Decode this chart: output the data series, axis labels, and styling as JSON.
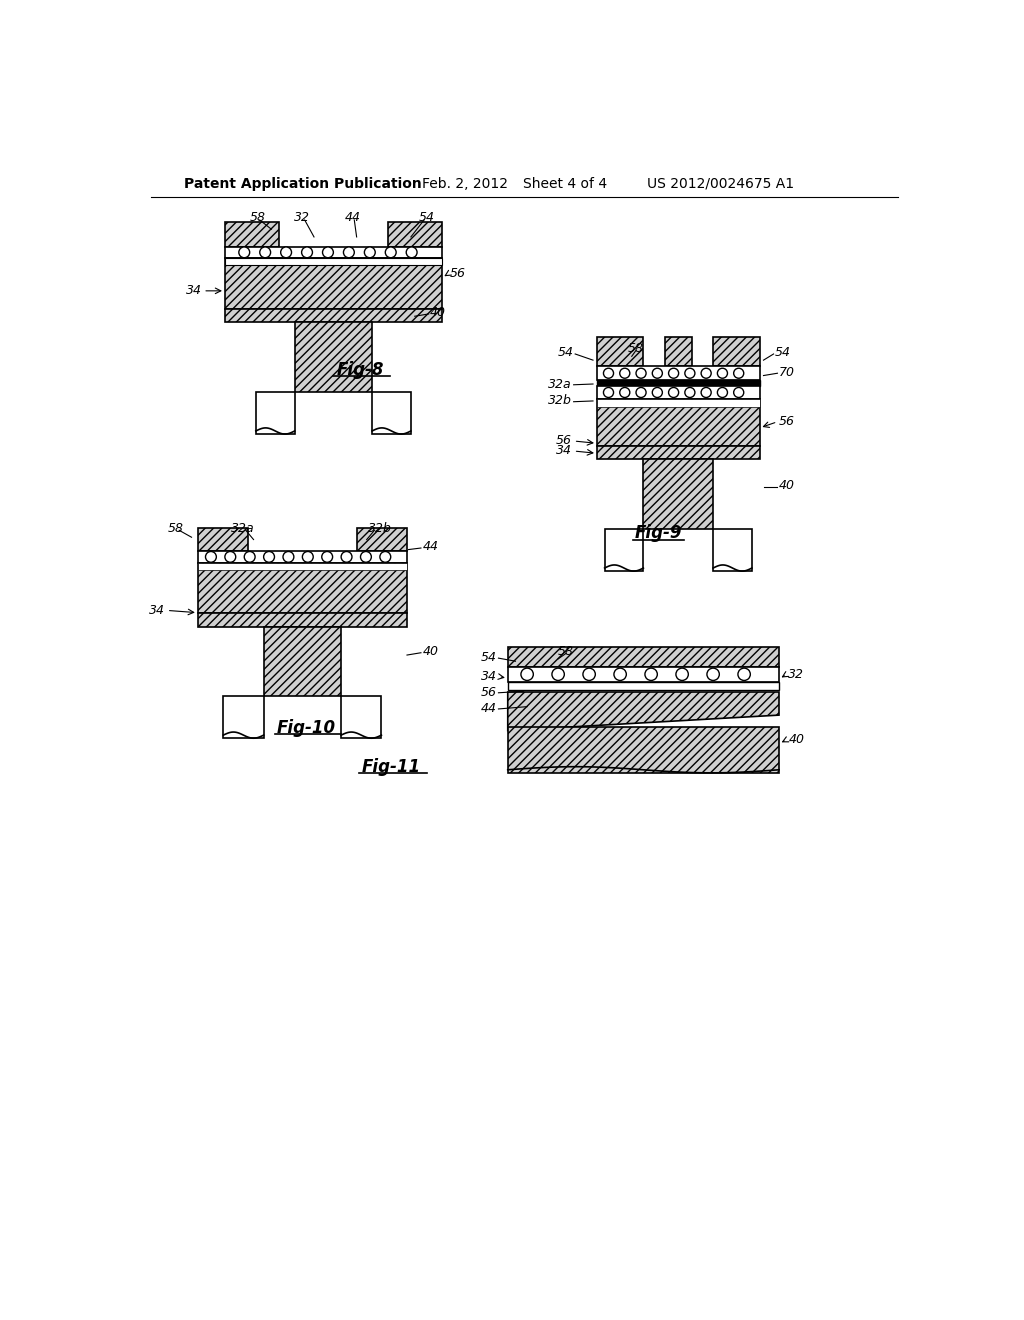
{
  "background_color": "#ffffff",
  "header_text": "Patent Application Publication",
  "header_date": "Feb. 2, 2012",
  "header_sheet": "Sheet 4 of 4",
  "header_patent": "US 2012/0024675 A1",
  "line_color": "#000000",
  "hatch_facecolor": "#d0d0d0",
  "fig8_label": "Fig-8",
  "fig9_label": "Fig-9",
  "fig10_label": "Fig-10",
  "fig11_label": "Fig-11"
}
